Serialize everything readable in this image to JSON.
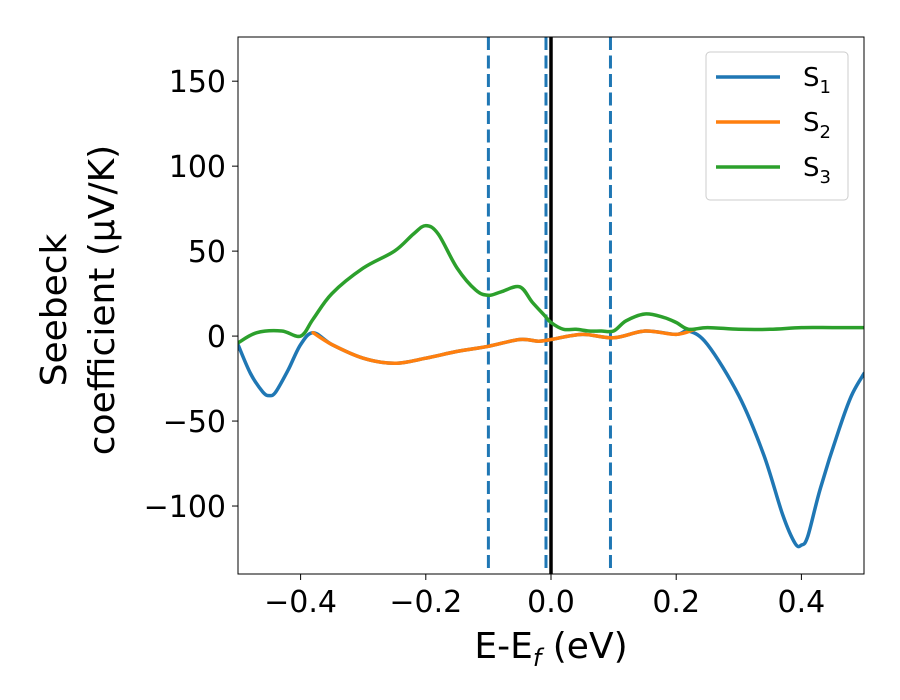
{
  "chart_data": {
    "type": "line",
    "xlabel": {
      "main": "E-E",
      "sub": "f",
      "rest": " (eV)"
    },
    "ylabel": {
      "line1": "Seebeck",
      "line2": "coefficient  (μV/K)"
    },
    "xlim": [
      -0.5,
      0.5
    ],
    "ylim": [
      -140,
      176
    ],
    "xticks": [
      -0.4,
      -0.2,
      0.0,
      0.2,
      0.4
    ],
    "xtick_labels": [
      "−0.4",
      "−0.2",
      "0.0",
      "0.2",
      "0.4"
    ],
    "yticks": [
      150,
      100,
      50,
      0,
      -50,
      -100
    ],
    "ytick_labels": [
      "150",
      "100",
      "50",
      "0",
      "−50",
      "−100"
    ],
    "grid": false,
    "legend_position": "top-right",
    "series": [
      {
        "name": "S1",
        "label_main": "S",
        "label_sub": "1",
        "color": "#1f77b4",
        "x": [
          -0.5,
          -0.48,
          -0.46,
          -0.45,
          -0.44,
          -0.42,
          -0.4,
          -0.38,
          -0.35,
          -0.3,
          -0.25,
          -0.2,
          -0.15,
          -0.1,
          -0.05,
          -0.02,
          0.0,
          0.05,
          0.1,
          0.15,
          0.2,
          0.22,
          0.25,
          0.3,
          0.34,
          0.37,
          0.39,
          0.4,
          0.41,
          0.43,
          0.46,
          0.48,
          0.5
        ],
        "y": [
          -5,
          -22,
          -33,
          -35,
          -33,
          -20,
          -5,
          2,
          -5,
          -13,
          -16,
          -13,
          -9,
          -6,
          -2,
          -3,
          -2,
          1,
          -1,
          3,
          1,
          3,
          -5,
          -35,
          -70,
          -105,
          -122,
          -123,
          -118,
          -90,
          -55,
          -35,
          -22
        ]
      },
      {
        "name": "S2",
        "label_main": "S",
        "label_sub": "2",
        "color": "#ff7f0e",
        "x": [
          -0.38,
          -0.35,
          -0.3,
          -0.25,
          -0.2,
          -0.15,
          -0.1,
          -0.05,
          -0.02,
          0.0,
          0.05,
          0.1,
          0.15,
          0.2,
          0.23
        ],
        "y": [
          2,
          -5,
          -13,
          -16,
          -13,
          -9,
          -6,
          -2,
          -3,
          -2,
          1,
          -1,
          3,
          1,
          4
        ]
      },
      {
        "name": "S3",
        "label_main": "S",
        "label_sub": "3",
        "color": "#2ca02c",
        "x": [
          -0.5,
          -0.47,
          -0.43,
          -0.4,
          -0.38,
          -0.35,
          -0.3,
          -0.25,
          -0.22,
          -0.2,
          -0.18,
          -0.15,
          -0.12,
          -0.1,
          -0.08,
          -0.05,
          -0.03,
          -0.01,
          0.0,
          0.02,
          0.04,
          0.06,
          0.08,
          0.1,
          0.12,
          0.15,
          0.18,
          0.2,
          0.22,
          0.25,
          0.3,
          0.35,
          0.4,
          0.45,
          0.5
        ],
        "y": [
          -4,
          2,
          3,
          0,
          10,
          25,
          40,
          50,
          60,
          65,
          60,
          40,
          27,
          24,
          26,
          29,
          20,
          12,
          8,
          4,
          4,
          3,
          3,
          3,
          9,
          13,
          11,
          8,
          4,
          5,
          4,
          4,
          5,
          5,
          5
        ]
      }
    ],
    "vlines": [
      {
        "x": -0.1,
        "style": "dashed",
        "color": "#1f77b4"
      },
      {
        "x": -0.008,
        "style": "dashed",
        "color": "#1f77b4"
      },
      {
        "x": 0.0,
        "style": "solid",
        "color": "#000000"
      },
      {
        "x": 0.095,
        "style": "dashed",
        "color": "#1f77b4"
      }
    ]
  }
}
